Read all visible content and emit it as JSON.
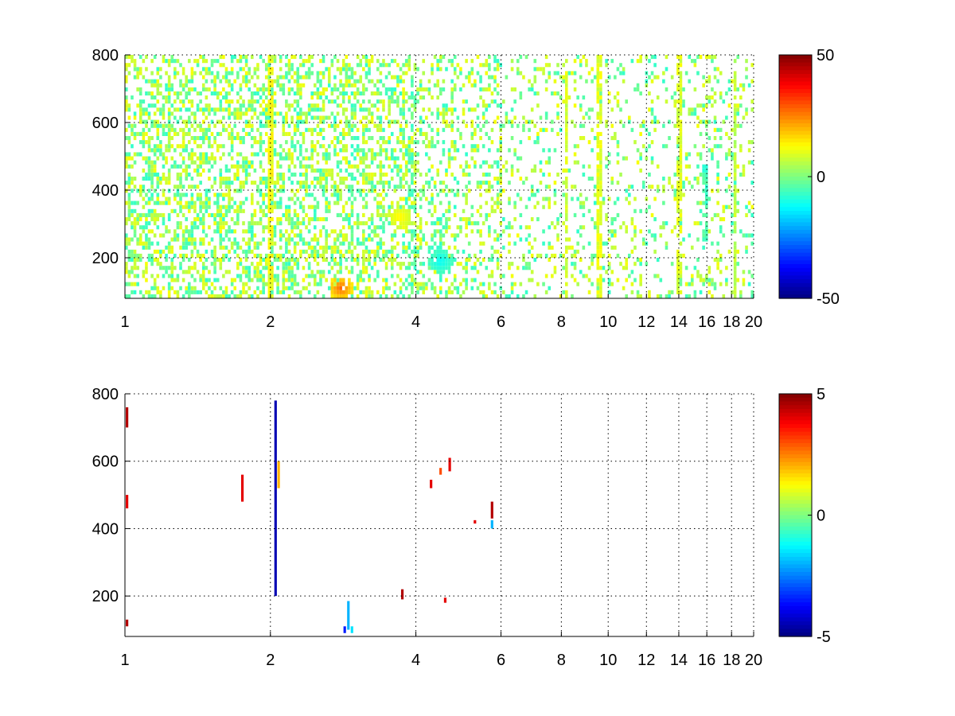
{
  "chart_data": [
    {
      "type": "heatmap",
      "title": "",
      "xlabel": "",
      "ylabel": "",
      "x_scale": "log",
      "xlim": [
        1,
        20
      ],
      "ylim": [
        80,
        800
      ],
      "x_ticks": [
        1,
        2,
        4,
        6,
        8,
        10,
        12,
        14,
        16,
        18,
        20
      ],
      "x_tick_labels": [
        "1",
        "2",
        "4",
        "6",
        "8",
        "10",
        "12",
        "14",
        "16",
        "18",
        "20"
      ],
      "y_ticks": [
        200,
        400,
        600,
        800
      ],
      "y_tick_labels": [
        "200",
        "400",
        "600",
        "800"
      ],
      "grid": true,
      "colormap": "jet",
      "colorbar": {
        "min": -50,
        "max": 50,
        "ticks": [
          50,
          0,
          -50
        ],
        "tick_labels": [
          "50",
          "0",
          "-50"
        ]
      },
      "description_of_values": "sparse cells mostly near 0 (range about -10 to 15); dense below x=4; warm cluster near x=2.8, y=100; vertical streaks at x≈2, 8.2, 9.6, 14, 15.8, 18.3",
      "streaks": [
        {
          "x": 2.0,
          "y_range": [
            80,
            800
          ],
          "value": 12
        },
        {
          "x": 8.2,
          "y_range": [
            80,
            800
          ],
          "value": 8
        },
        {
          "x": 9.6,
          "y_range": [
            80,
            800
          ],
          "value": 10
        },
        {
          "x": 14.0,
          "y_range": [
            80,
            800
          ],
          "value": 9
        },
        {
          "x": 15.8,
          "y_range": [
            250,
            480
          ],
          "value": -6
        },
        {
          "x": 18.3,
          "y_range": [
            80,
            800
          ],
          "value": 6
        }
      ],
      "clusters": [
        {
          "x": 2.8,
          "y": 110,
          "value": 28
        },
        {
          "x": 3.7,
          "y": 320,
          "value": 14
        },
        {
          "x": 4.5,
          "y": 190,
          "value": -12
        }
      ]
    },
    {
      "type": "heatmap",
      "title": "",
      "xlabel": "",
      "ylabel": "",
      "x_scale": "log",
      "xlim": [
        1,
        20
      ],
      "ylim": [
        80,
        800
      ],
      "x_ticks": [
        1,
        2,
        4,
        6,
        8,
        10,
        12,
        14,
        16,
        18,
        20
      ],
      "x_tick_labels": [
        "1",
        "2",
        "4",
        "6",
        "8",
        "10",
        "12",
        "14",
        "16",
        "18",
        "20"
      ],
      "y_ticks": [
        200,
        400,
        600,
        800
      ],
      "y_tick_labels": [
        "200",
        "400",
        "600",
        "800"
      ],
      "grid": true,
      "colormap": "jet",
      "colorbar": {
        "min": -5,
        "max": 5,
        "ticks": [
          5,
          0,
          -5
        ],
        "tick_labels": [
          "5",
          "0",
          "-5"
        ]
      },
      "cells": [
        {
          "x": 2.05,
          "y0": 200,
          "y1": 780,
          "value": -4.5
        },
        {
          "x": 2.08,
          "y0": 520,
          "y1": 600,
          "value": 2
        },
        {
          "x": 1.01,
          "y0": 700,
          "y1": 760,
          "value": 4.5
        },
        {
          "x": 1.01,
          "y0": 460,
          "y1": 500,
          "value": 4
        },
        {
          "x": 1.01,
          "y0": 110,
          "y1": 130,
          "value": 4.5
        },
        {
          "x": 1.75,
          "y0": 480,
          "y1": 560,
          "value": 4
        },
        {
          "x": 2.85,
          "y0": 90,
          "y1": 110,
          "value": -3.5
        },
        {
          "x": 2.9,
          "y0": 100,
          "y1": 185,
          "value": -2
        },
        {
          "x": 2.95,
          "y0": 90,
          "y1": 110,
          "value": -1.5
        },
        {
          "x": 3.75,
          "y0": 190,
          "y1": 220,
          "value": 4.5
        },
        {
          "x": 4.3,
          "y0": 520,
          "y1": 545,
          "value": 4
        },
        {
          "x": 4.5,
          "y0": 560,
          "y1": 580,
          "value": 3
        },
        {
          "x": 4.7,
          "y0": 570,
          "y1": 610,
          "value": 4
        },
        {
          "x": 4.6,
          "y0": 180,
          "y1": 195,
          "value": 4
        },
        {
          "x": 5.3,
          "y0": 415,
          "y1": 425,
          "value": 4
        },
        {
          "x": 5.75,
          "y0": 430,
          "y1": 480,
          "value": 4.5
        },
        {
          "x": 5.75,
          "y0": 400,
          "y1": 425,
          "value": -2
        }
      ]
    }
  ]
}
